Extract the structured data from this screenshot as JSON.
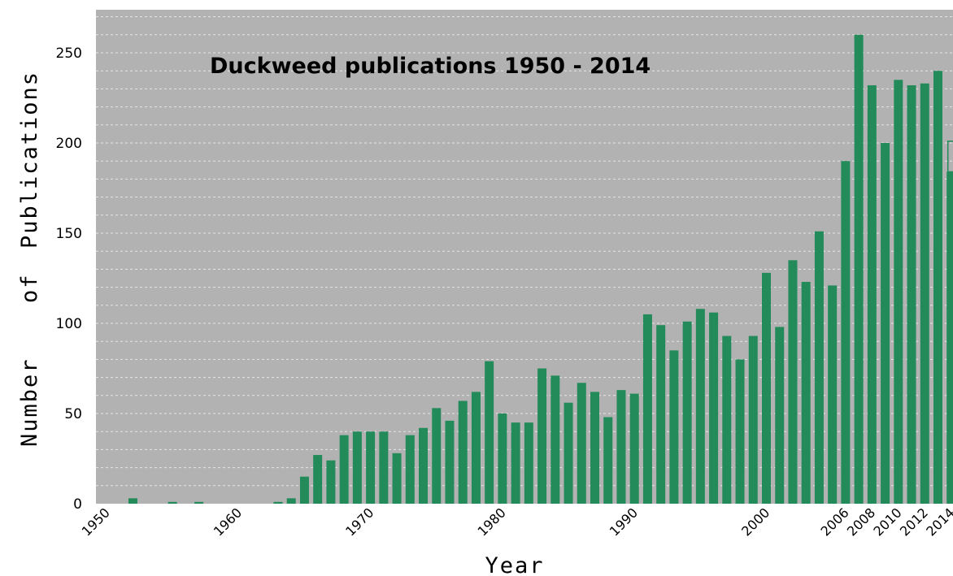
{
  "chart_data": {
    "type": "bar",
    "title": "Duckweed publications 1950 - 2014",
    "xlabel": "Year",
    "ylabel": "Number of Publications",
    "ylabel_words": [
      "Number",
      "of",
      "Publications"
    ],
    "ylim": [
      0,
      270
    ],
    "yticks": [
      0,
      50,
      100,
      150,
      200,
      250
    ],
    "xtick_labels": [
      "1950",
      "1960",
      "1970",
      "1980",
      "1990",
      "2000",
      "2006",
      "2008",
      "2010",
      "2012",
      "2014"
    ],
    "bar_color": "#238a5a",
    "background_color": "#b2b2b2",
    "grid": true,
    "categories": [
      1950,
      1951,
      1952,
      1953,
      1954,
      1955,
      1956,
      1957,
      1958,
      1959,
      1960,
      1961,
      1962,
      1963,
      1964,
      1965,
      1966,
      1967,
      1968,
      1969,
      1970,
      1971,
      1972,
      1973,
      1974,
      1975,
      1976,
      1977,
      1978,
      1979,
      1980,
      1981,
      1982,
      1983,
      1984,
      1985,
      1986,
      1987,
      1988,
      1989,
      1990,
      1991,
      1992,
      1993,
      1994,
      1995,
      1996,
      1997,
      1998,
      1999,
      2000,
      2001,
      2002,
      2003,
      2004,
      2005,
      2006,
      2007,
      2008,
      2009,
      2010,
      2011,
      2012,
      2013,
      2014
    ],
    "values": [
      0,
      0,
      3,
      0,
      0,
      1,
      0,
      1,
      0,
      0,
      0,
      0,
      0,
      1,
      3,
      15,
      27,
      24,
      38,
      40,
      40,
      40,
      28,
      38,
      42,
      53,
      46,
      57,
      62,
      79,
      50,
      45,
      45,
      75,
      71,
      56,
      67,
      62,
      48,
      63,
      61,
      105,
      99,
      85,
      101,
      108,
      106,
      93,
      80,
      93,
      128,
      98,
      135,
      123,
      151,
      121,
      190,
      260,
      232,
      200,
      235,
      232,
      233,
      240,
      184
    ],
    "partial_year_outline": {
      "category": 2014,
      "value": 201
    }
  }
}
